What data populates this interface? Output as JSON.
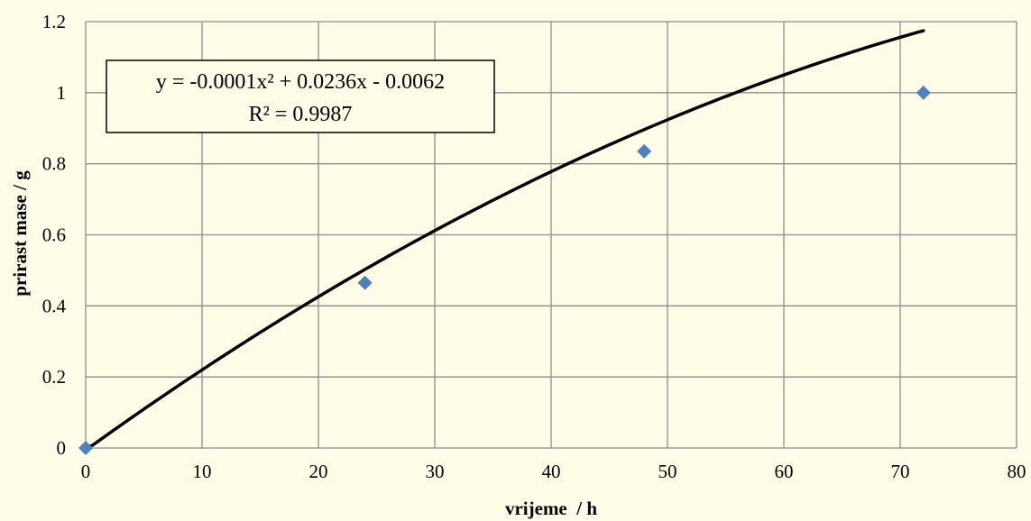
{
  "chart_data": {
    "type": "scatter",
    "xlabel": "vrijeme  / h",
    "ylabel": "prirast mase / g",
    "xlim": [
      0,
      80
    ],
    "ylim": [
      0,
      1.2
    ],
    "x_ticks": [
      0,
      10,
      20,
      30,
      40,
      50,
      60,
      70,
      80
    ],
    "y_ticks": [
      0,
      0.2,
      0.4,
      0.6,
      0.8,
      1,
      1.2
    ],
    "x_tick_labels": [
      "0",
      "10",
      "20",
      "30",
      "40",
      "50",
      "60",
      "70",
      "80"
    ],
    "y_tick_labels": [
      "0",
      "0.2",
      "0.4",
      "0.6",
      "0.8",
      "1",
      "1.2"
    ],
    "grid": true,
    "series": [
      {
        "x": [
          0,
          24,
          48,
          72
        ],
        "y": [
          0,
          0.465,
          0.835,
          1.0
        ],
        "color": "#4F81BD",
        "marker": "diamond"
      }
    ],
    "trendline": {
      "type": "polynomial",
      "order": 2,
      "coefficients": [
        -0.0001,
        0.0236,
        -0.0062
      ],
      "x_range": [
        0,
        72
      ],
      "color": "#000000",
      "equation_label": "y = -0.0001x² + 0.0236x - 0.0062",
      "r_squared_label": "R² = 0.9987"
    }
  }
}
